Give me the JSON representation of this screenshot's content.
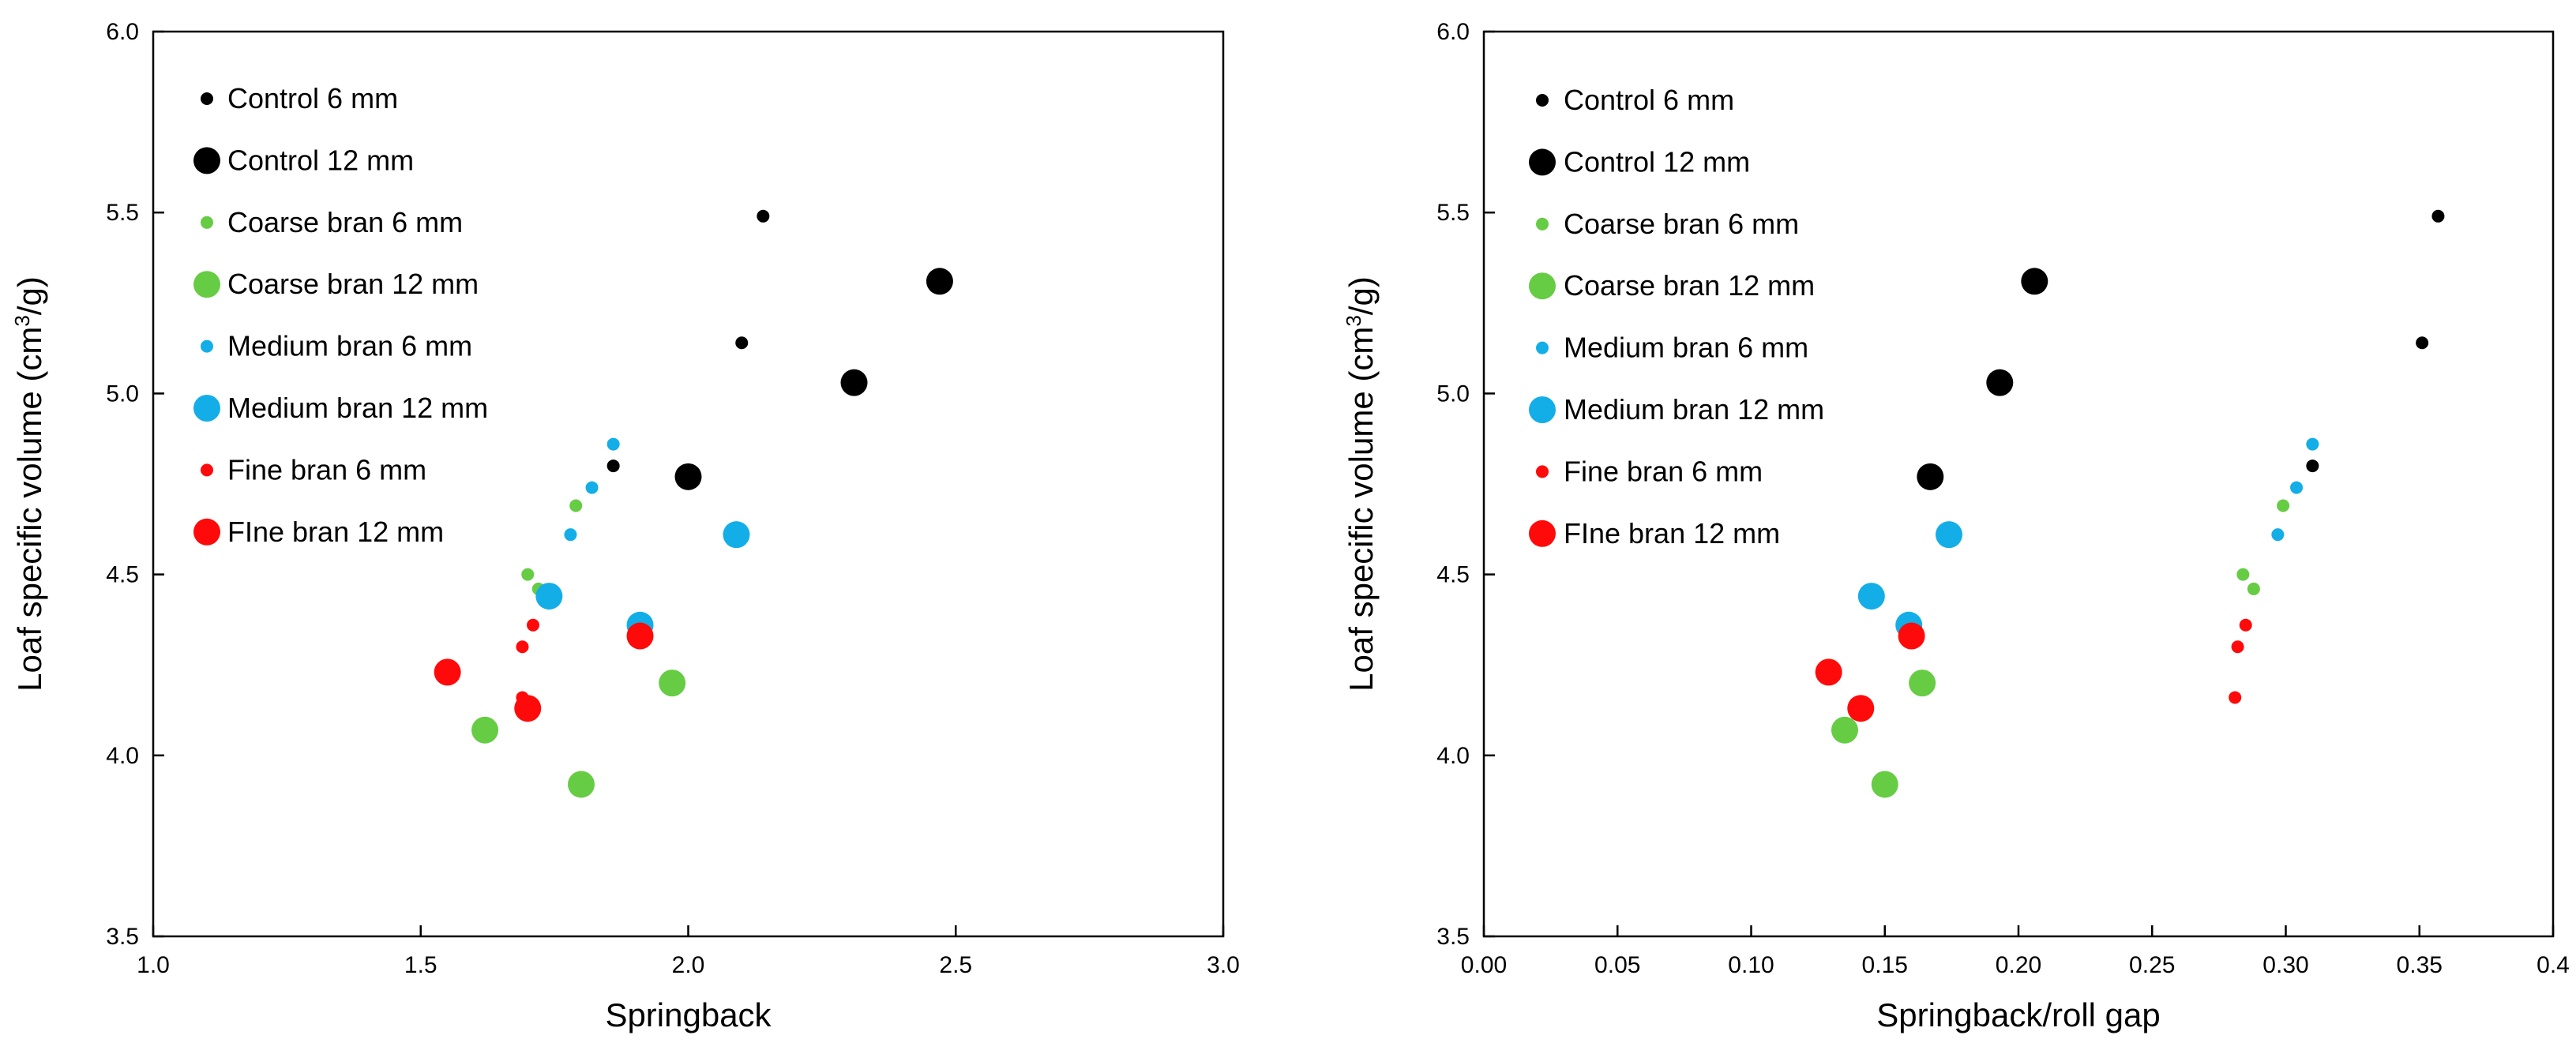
{
  "chart_data": [
    {
      "type": "scatter",
      "title": "",
      "xlabel": "Springback",
      "ylabel": "Loaf specific volume (cm",
      "ylabel_sup": "3",
      "ylabel_tail": "/g)",
      "xlim": [
        1.0,
        3.0
      ],
      "ylim": [
        3.5,
        6.0
      ],
      "xticks": [
        "1.0",
        "1.5",
        "2.0",
        "2.5",
        "3.0"
      ],
      "yticks": [
        "3.5",
        "4.0",
        "4.5",
        "5.0",
        "5.5",
        "6.0"
      ],
      "grid": false,
      "legend_position": "top-left",
      "series": [
        {
          "name": "Control 6 mm",
          "color": "#000000",
          "size": "small",
          "x": [
            2.14,
            2.1,
            1.86
          ],
          "y": [
            5.49,
            5.14,
            4.8
          ]
        },
        {
          "name": "Control 12 mm",
          "color": "#000000",
          "size": "large",
          "x": [
            2.47,
            2.31,
            2.0
          ],
          "y": [
            5.31,
            5.03,
            4.77
          ]
        },
        {
          "name": "Coarse bran 6 mm",
          "color": "#66cc44",
          "size": "small",
          "x": [
            1.79,
            1.7,
            1.72
          ],
          "y": [
            4.69,
            4.5,
            4.46
          ]
        },
        {
          "name": "Coarse bran 12 mm",
          "color": "#66cc44",
          "size": "large",
          "x": [
            1.97,
            1.62,
            1.8
          ],
          "y": [
            4.2,
            4.07,
            3.92
          ]
        },
        {
          "name": "Medium bran 6 mm",
          "color": "#13aee8",
          "size": "small",
          "x": [
            1.86,
            1.82,
            1.78
          ],
          "y": [
            4.86,
            4.74,
            4.61
          ]
        },
        {
          "name": "Medium bran 12 mm",
          "color": "#13aee8",
          "size": "large",
          "x": [
            2.09,
            1.74,
            1.91
          ],
          "y": [
            4.61,
            4.44,
            4.36
          ]
        },
        {
          "name": "Fine bran 6 mm",
          "color": "#ff0a0a",
          "size": "small",
          "x": [
            1.71,
            1.69,
            1.69
          ],
          "y": [
            4.36,
            4.3,
            4.16
          ]
        },
        {
          "name": "FIne bran 12 mm",
          "color": "#ff0a0a",
          "size": "large",
          "x": [
            1.91,
            1.55,
            1.7
          ],
          "y": [
            4.33,
            4.23,
            4.13
          ]
        }
      ]
    },
    {
      "type": "scatter",
      "title": "",
      "xlabel": "Springback/roll gap",
      "ylabel": "Loaf specific volume (cm",
      "ylabel_sup": "3",
      "ylabel_tail": "/g)",
      "xlim": [
        0.0,
        0.4
      ],
      "ylim": [
        3.5,
        6.0
      ],
      "xticks": [
        "0.00",
        "0.05",
        "0.10",
        "0.15",
        "0.20",
        "0.25",
        "0.30",
        "0.35",
        "0.4"
      ],
      "yticks": [
        "3.5",
        "4.0",
        "4.5",
        "5.0",
        "5.5",
        "6.0"
      ],
      "grid": false,
      "legend_position": "top-left",
      "series": [
        {
          "name": "Control 6 mm",
          "color": "#000000",
          "size": "small",
          "x": [
            0.357,
            0.351,
            0.31
          ],
          "y": [
            5.49,
            5.14,
            4.8
          ]
        },
        {
          "name": "Control 12 mm",
          "color": "#000000",
          "size": "large",
          "x": [
            0.206,
            0.193,
            0.167
          ],
          "y": [
            5.31,
            5.03,
            4.77
          ]
        },
        {
          "name": "Coarse bran 6 mm",
          "color": "#66cc44",
          "size": "small",
          "x": [
            0.299,
            0.284,
            0.288
          ],
          "y": [
            4.69,
            4.5,
            4.46
          ]
        },
        {
          "name": "Coarse bran 12 mm",
          "color": "#66cc44",
          "size": "large",
          "x": [
            0.164,
            0.135,
            0.15
          ],
          "y": [
            4.2,
            4.07,
            3.92
          ]
        },
        {
          "name": "Medium bran 6 mm",
          "color": "#13aee8",
          "size": "small",
          "x": [
            0.31,
            0.304,
            0.297
          ],
          "y": [
            4.86,
            4.74,
            4.61
          ]
        },
        {
          "name": "Medium bran 12 mm",
          "color": "#13aee8",
          "size": "large",
          "x": [
            0.174,
            0.145,
            0.159
          ],
          "y": [
            4.61,
            4.44,
            4.36
          ]
        },
        {
          "name": "Fine bran 6 mm",
          "color": "#ff0a0a",
          "size": "small",
          "x": [
            0.285,
            0.282,
            0.281
          ],
          "y": [
            4.36,
            4.3,
            4.16
          ]
        },
        {
          "name": "FIne bran 12 mm",
          "color": "#ff0a0a",
          "size": "large",
          "x": [
            0.16,
            0.129,
            0.141
          ],
          "y": [
            4.33,
            4.23,
            4.13
          ]
        }
      ]
    }
  ]
}
